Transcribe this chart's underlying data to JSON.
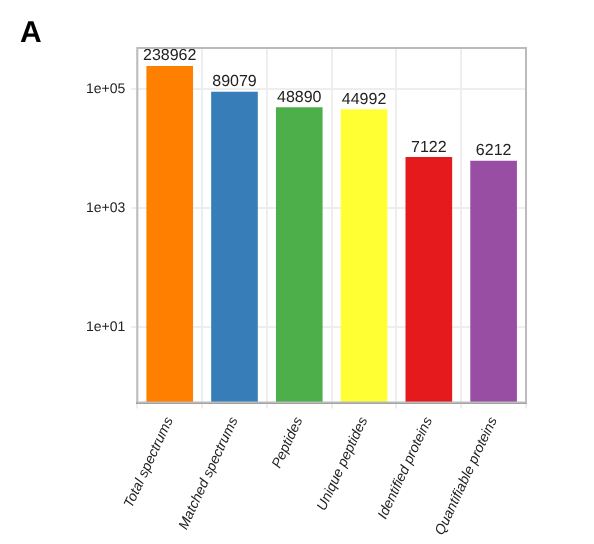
{
  "chart_data": {
    "type": "bar",
    "title": "A",
    "categories": [
      "Total spectrums",
      "Matched spectrums",
      "Peptides",
      "Unique peptides",
      "Identified proteins",
      "Quantifiable proteins"
    ],
    "values": [
      238962,
      89079,
      48890,
      44992,
      7122,
      6212
    ],
    "colors": [
      "#ff7f00",
      "#377eb8",
      "#4daf4a",
      "#ffff33",
      "#e41a1c",
      "#984ea3"
    ],
    "log": "y",
    "ylim": [
      0.55,
      480000
    ],
    "yticks": [
      {
        "value": 10,
        "label": "1e+01"
      },
      {
        "value": 1000,
        "label": "1e+03"
      },
      {
        "value": 100000,
        "label": "1e+05"
      }
    ],
    "grid": true,
    "data_labels": true,
    "legend": false
  }
}
